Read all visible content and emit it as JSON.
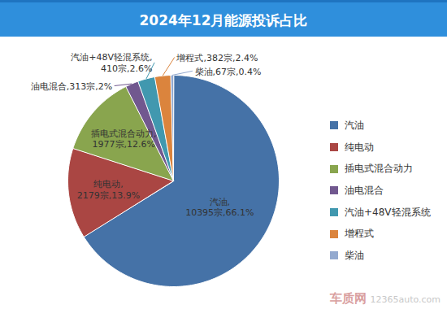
{
  "chart_data": {
    "type": "pie",
    "title": "2024年12月能源投诉占比",
    "categories": [
      "汽油",
      "纯电动",
      "插电式混合动力",
      "油电混合",
      "汽油+48V轻混系统",
      "增程式",
      "柴油"
    ],
    "values": [
      10395,
      2179,
      1977,
      313,
      410,
      382,
      67
    ],
    "percentages": [
      66.1,
      13.9,
      12.6,
      2,
      2.6,
      2.4,
      0.4
    ],
    "value_labels": [
      "汽油,10395宗,66.1%",
      "纯电动,2179宗,13.9%",
      "插电式混合动力,1977宗,12.6%",
      "油电混合,313宗,2%",
      "汽油+48V轻混系统,410宗,2.6%",
      "增程式,382宗,2.4%",
      "柴油,67宗,0.4%"
    ],
    "colors": [
      "#4572a7",
      "#aa4643",
      "#89a54e",
      "#71588f",
      "#4198af",
      "#db843d",
      "#93a9cf"
    ],
    "data_labels": true,
    "legend": "right",
    "tick_labels": false,
    "annotations": [
      "车质网",
      "12365auto.com"
    ]
  }
}
